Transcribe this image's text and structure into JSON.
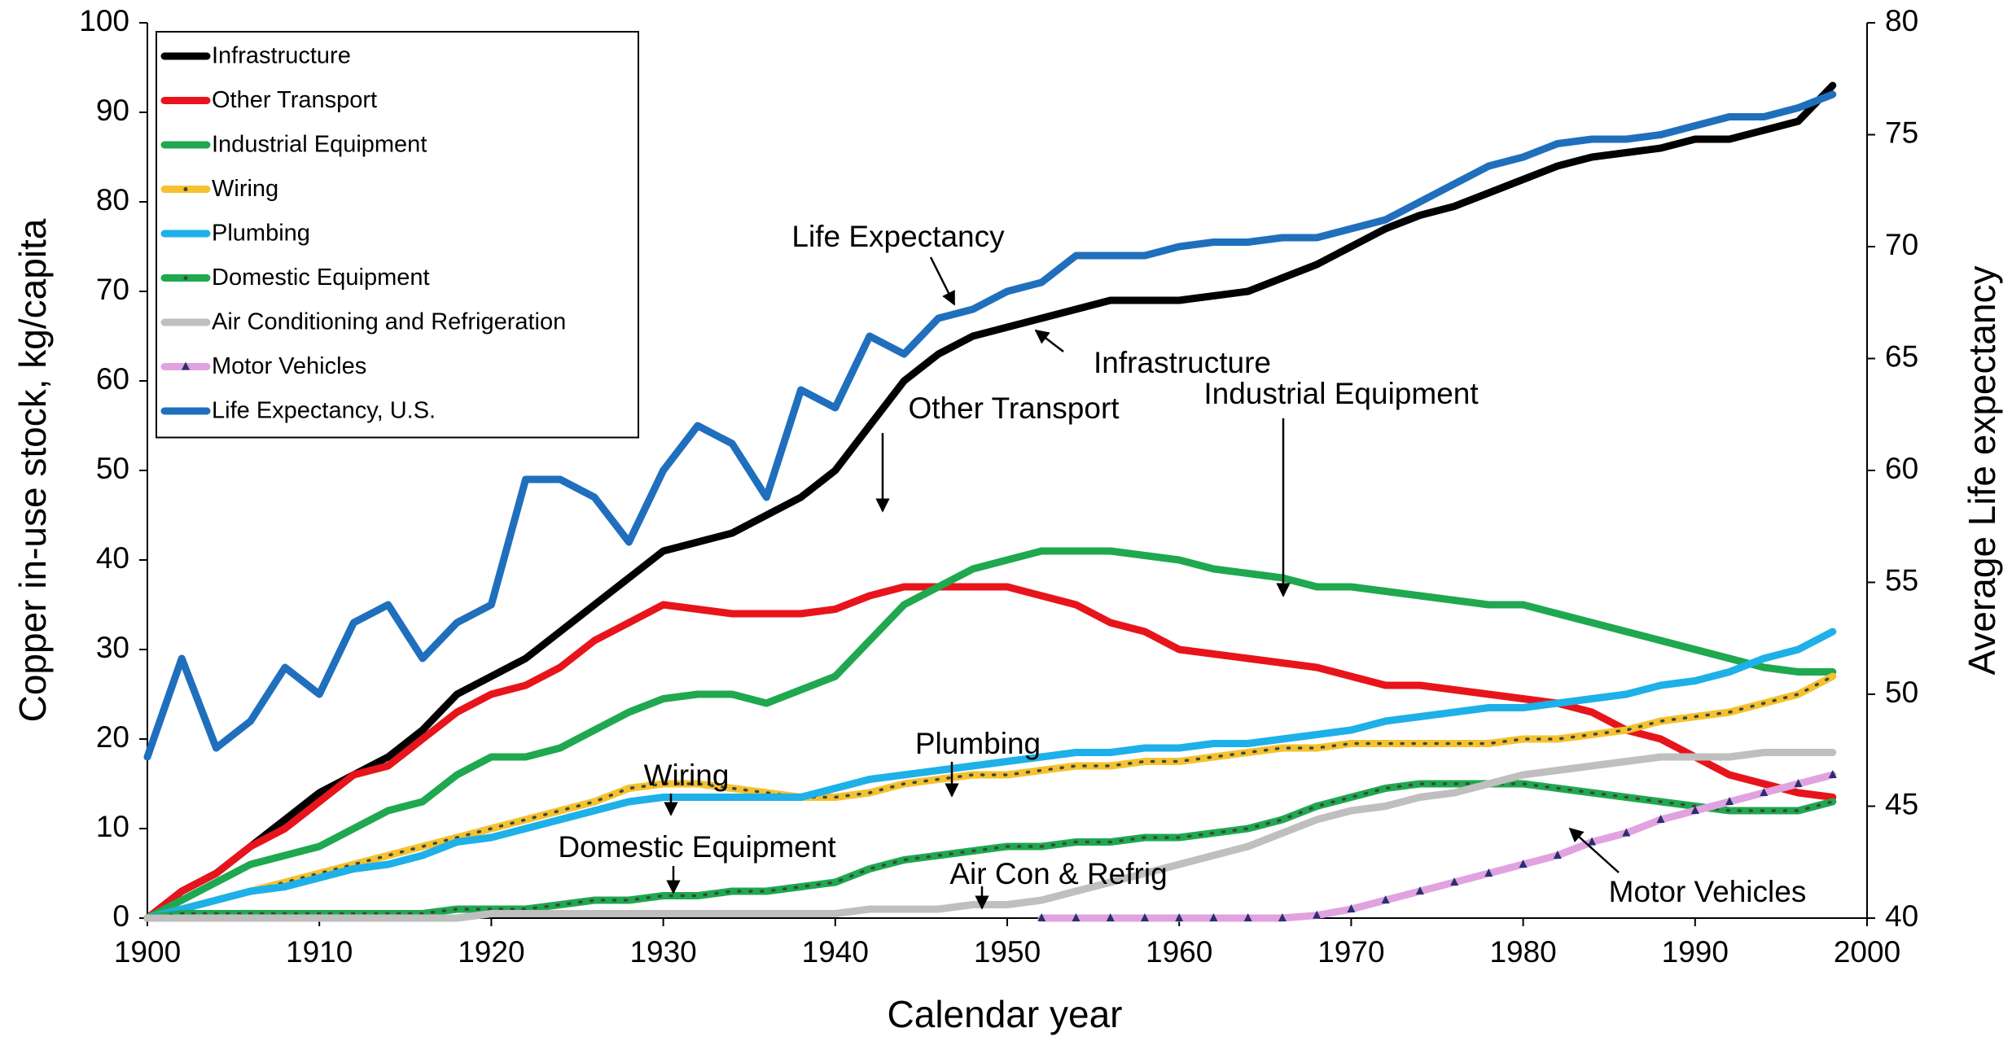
{
  "chart_data": {
    "type": "line",
    "xlabel": "Calendar year",
    "ylabel": "Copper in-use stock, kg/capita",
    "y2label": "Average Life expectancy",
    "x": [
      1900,
      1902,
      1904,
      1906,
      1908,
      1910,
      1912,
      1914,
      1916,
      1918,
      1920,
      1922,
      1924,
      1926,
      1928,
      1930,
      1932,
      1934,
      1936,
      1938,
      1940,
      1942,
      1944,
      1946,
      1948,
      1950,
      1952,
      1954,
      1956,
      1958,
      1960,
      1962,
      1964,
      1966,
      1968,
      1970,
      1972,
      1974,
      1976,
      1978,
      1980,
      1982,
      1984,
      1986,
      1988,
      1990,
      1992,
      1994,
      1996,
      1998
    ],
    "xlim": [
      1900,
      2000
    ],
    "xticks": [
      1900,
      1910,
      1920,
      1930,
      1940,
      1950,
      1960,
      1970,
      1980,
      1990,
      2000
    ],
    "ylim": [
      0,
      100
    ],
    "yticks": [
      0,
      10,
      20,
      30,
      40,
      50,
      60,
      70,
      80,
      90,
      100
    ],
    "y2lim": [
      40,
      80
    ],
    "y2ticks": [
      40,
      45,
      50,
      55,
      60,
      65,
      70,
      75,
      80
    ],
    "grid": false,
    "legend": "upper left",
    "series": [
      {
        "name": "Infrastructure",
        "color": "#000000",
        "values": [
          0,
          3,
          5,
          8,
          11,
          14,
          16,
          18,
          21,
          25,
          27,
          29,
          32,
          35,
          38,
          41,
          42,
          43,
          45,
          47,
          50,
          55,
          60,
          63,
          65,
          66,
          67,
          68,
          69,
          69,
          69,
          69.5,
          70,
          71.5,
          73,
          75,
          77,
          78.5,
          79.5,
          81,
          82.5,
          84,
          85,
          85.5,
          86,
          87,
          87,
          88,
          89,
          93
        ]
      },
      {
        "name": "Other Transport",
        "color": "#e8141b",
        "values": [
          0,
          3,
          5,
          8,
          10,
          13,
          16,
          17,
          20,
          23,
          25,
          26,
          28,
          31,
          33,
          35,
          34.5,
          34,
          34,
          34,
          34.5,
          36,
          37,
          37,
          37,
          37,
          36,
          35,
          33,
          32,
          30,
          29.5,
          29,
          28.5,
          28,
          27,
          26,
          26,
          25.5,
          25,
          24.5,
          24,
          23,
          21,
          20,
          18,
          16,
          15,
          14,
          13.5
        ]
      },
      {
        "name": "Industrial Equipment",
        "color": "#1fa84f",
        "values": [
          0,
          2,
          4,
          6,
          7,
          8,
          10,
          12,
          13,
          16,
          18,
          18,
          19,
          21,
          23,
          24.5,
          25,
          25,
          24,
          25.5,
          27,
          31,
          35,
          37,
          39,
          40,
          41,
          41,
          41,
          40.5,
          40,
          39,
          38.5,
          38,
          37,
          37,
          36.5,
          36,
          35.5,
          35,
          35,
          34,
          33,
          32,
          31,
          30,
          29,
          28,
          27.5,
          27.5
        ]
      },
      {
        "name": "Wiring",
        "color": "#f5c12e",
        "marker": "dots",
        "values": [
          0,
          1,
          2,
          3,
          4,
          5,
          6,
          7,
          8,
          9,
          10,
          11,
          12,
          13,
          14.5,
          15,
          15,
          14.5,
          14,
          13.5,
          13.5,
          14,
          15,
          15.5,
          16,
          16,
          16.5,
          17,
          17,
          17.5,
          17.5,
          18,
          18.5,
          19,
          19,
          19.5,
          19.5,
          19.5,
          19.5,
          19.5,
          20,
          20,
          20.5,
          21,
          22,
          22.5,
          23,
          24,
          25,
          27
        ]
      },
      {
        "name": "Plumbing",
        "color": "#1eb0e8",
        "values": [
          0,
          1,
          2,
          3,
          3.5,
          4.5,
          5.5,
          6,
          7,
          8.5,
          9,
          10,
          11,
          12,
          13,
          13.5,
          13.5,
          13.5,
          13.5,
          13.5,
          14.5,
          15.5,
          16,
          16.5,
          17,
          17.5,
          18,
          18.5,
          18.5,
          19,
          19,
          19.5,
          19.5,
          20,
          20.5,
          21,
          22,
          22.5,
          23,
          23.5,
          23.5,
          24,
          24.5,
          25,
          26,
          26.5,
          27.5,
          29,
          30,
          32
        ]
      },
      {
        "name": "Domestic Equipment",
        "color": "#1fa84f",
        "marker": "dots",
        "values": [
          0,
          0.5,
          0.5,
          0.5,
          0.5,
          0.5,
          0.5,
          0.5,
          0.5,
          1,
          1,
          1,
          1.5,
          2,
          2,
          2.5,
          2.5,
          3,
          3,
          3.5,
          4,
          5.5,
          6.5,
          7,
          7.5,
          8,
          8,
          8.5,
          8.5,
          9,
          9,
          9.5,
          10,
          11,
          12.5,
          13.5,
          14.5,
          15,
          15,
          15,
          15,
          14.5,
          14,
          13.5,
          13,
          12.5,
          12,
          12,
          12,
          13
        ]
      },
      {
        "name": "Air Conditioning and Refrigeration",
        "color": "#bfbfbf",
        "values": [
          0,
          0,
          0,
          0,
          0,
          0,
          0,
          0,
          0,
          0,
          0.5,
          0.5,
          0.5,
          0.5,
          0.5,
          0.5,
          0.5,
          0.5,
          0.5,
          0.5,
          0.5,
          1,
          1,
          1,
          1.5,
          1.5,
          2,
          3,
          4,
          5,
          6,
          7,
          8,
          9.5,
          11,
          12,
          12.5,
          13.5,
          14,
          15,
          16,
          16.5,
          17,
          17.5,
          18,
          18,
          18,
          18.5,
          18.5,
          18.5
        ]
      },
      {
        "name": "Motor Vehicles",
        "color": "#e0a3e0",
        "marker": "triangles",
        "values": [
          null,
          null,
          null,
          null,
          null,
          null,
          null,
          null,
          null,
          null,
          null,
          null,
          null,
          null,
          null,
          null,
          null,
          null,
          null,
          null,
          null,
          null,
          null,
          null,
          null,
          null,
          0,
          0,
          0,
          0,
          0,
          0,
          0,
          0,
          0.3,
          1,
          2,
          3,
          4,
          5,
          6,
          7,
          8.5,
          9.5,
          11,
          12,
          13,
          14,
          15,
          16
        ]
      },
      {
        "name": "Life Expectancy, U.S.",
        "color": "#1f6fbd",
        "axis": "y2",
        "values": [
          47.2,
          51.6,
          47.6,
          48.8,
          51.2,
          50,
          53.2,
          54,
          51.6,
          53.2,
          54,
          59.6,
          59.6,
          58.8,
          56.8,
          60,
          62,
          61.2,
          58.8,
          63.6,
          62.8,
          66,
          65.2,
          66.8,
          67.2,
          68,
          68.4,
          69.6,
          69.6,
          69.6,
          70,
          70.2,
          70.2,
          70.4,
          70.4,
          70.8,
          71.2,
          72,
          72.8,
          73.6,
          74,
          74.6,
          74.8,
          74.8,
          75,
          75.4,
          75.8,
          75.8,
          76.2,
          76.8
        ]
      }
    ],
    "annotations": [
      {
        "text": "Life Expectancy"
      },
      {
        "text": "Infrastructure"
      },
      {
        "text": "Other Transport"
      },
      {
        "text": "Industrial Equipment"
      },
      {
        "text": "Plumbing"
      },
      {
        "text": "Wiring"
      },
      {
        "text": "Domestic Equipment"
      },
      {
        "text": "Air Con & Refrig"
      },
      {
        "text": "Motor Vehicles"
      }
    ]
  }
}
